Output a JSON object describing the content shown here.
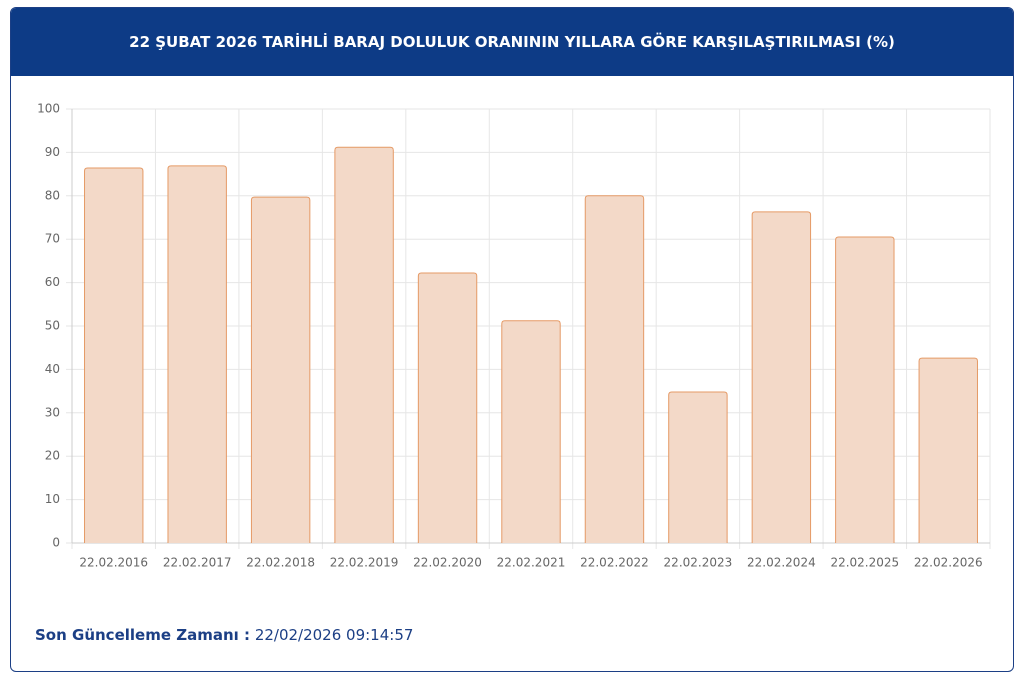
{
  "chart_data": {
    "type": "bar",
    "title": "22 ŞUBAT 2026 TARİHLİ BARAJ DOLULUK ORANININ YILLARA GÖRE KARŞILAŞTIRILMASI (%)",
    "categories": [
      "22.02.2016",
      "22.02.2017",
      "22.02.2018",
      "22.02.2019",
      "22.02.2020",
      "22.02.2021",
      "22.02.2022",
      "22.02.2023",
      "22.02.2024",
      "22.02.2025",
      "22.02.2026"
    ],
    "values": [
      86.4,
      86.9,
      79.7,
      91.2,
      62.2,
      51.2,
      80.0,
      34.8,
      76.3,
      70.5,
      42.6
    ],
    "color": "#f3d9c8",
    "border_color": "#e59a66",
    "ylim": [
      0,
      100
    ],
    "yticks": [
      0,
      10,
      20,
      30,
      40,
      50,
      60,
      70,
      80,
      90,
      100
    ],
    "grid": true
  },
  "footer": {
    "label": "Son Güncelleme Zamanı :",
    "value": "22/02/2026 09:14:57"
  }
}
